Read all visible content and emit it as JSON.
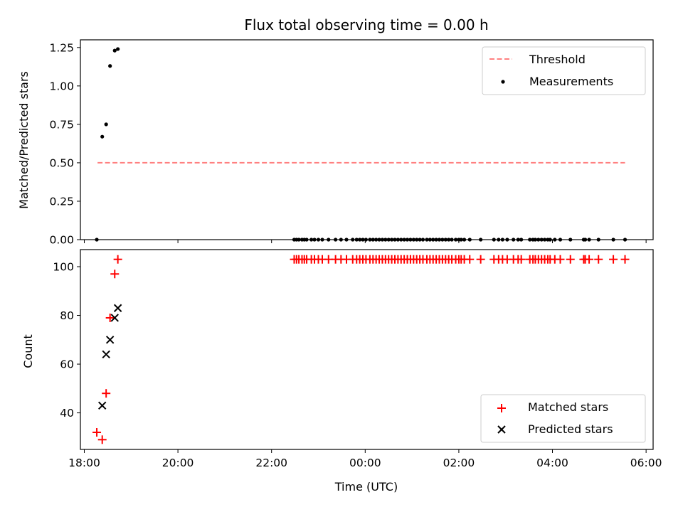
{
  "chart_data": [
    {
      "type": "scatter",
      "title": "Flux total observing time = 0.00 h",
      "xlabel": "",
      "ylabel": "Matched/Predicted stars",
      "ylim": [
        0,
        1.3
      ],
      "xlim": [
        "17:55",
        "06:09"
      ],
      "yticks": [
        "0.00",
        "0.25",
        "0.50",
        "0.75",
        "1.00",
        "1.25"
      ],
      "grid": false,
      "legend_position": "top-right",
      "threshold": {
        "name": "Threshold",
        "value": 0.5,
        "x_range": [
          "18:17",
          "05:33"
        ],
        "color": "#ff8080",
        "style": "dashed"
      },
      "series": [
        {
          "name": "Measurements",
          "color": "#000000",
          "x": [
            "18:16",
            "18:23",
            "18:28",
            "18:33",
            "18:39",
            "18:43"
          ],
          "y": [
            0.0,
            0.67,
            0.75,
            1.13,
            1.23,
            1.24
          ]
        },
        {
          "name": "Measurements",
          "color": "#000000",
          "times": [
            "22:29",
            "22:32",
            "22:35",
            "22:39",
            "22:42",
            "22:45",
            "22:51",
            "22:55",
            "23:00",
            "23:05",
            "23:13",
            "23:22",
            "23:29",
            "23:36",
            "23:44",
            "23:49",
            "23:53",
            "23:57",
            "00:01",
            "00:06",
            "00:10",
            "00:14",
            "00:18",
            "00:22",
            "00:26",
            "00:30",
            "00:34",
            "00:38",
            "00:42",
            "00:46",
            "00:50",
            "00:54",
            "00:58",
            "01:02",
            "01:06",
            "01:10",
            "01:14",
            "01:19",
            "01:23",
            "01:27",
            "01:31",
            "01:35",
            "01:39",
            "01:43",
            "01:47",
            "01:51",
            "01:56",
            "02:00",
            "02:03",
            "02:07",
            "02:14",
            "02:28",
            "02:45",
            "02:51",
            "02:56",
            "03:02",
            "03:10",
            "03:16",
            "03:20",
            "03:31",
            "03:35",
            "03:38",
            "03:42",
            "03:46",
            "03:50",
            "03:54",
            "03:57",
            "04:03",
            "04:10",
            "04:23",
            "04:40",
            "04:42",
            "04:47",
            "04:59",
            "05:18",
            "05:33"
          ],
          "value": 0.0
        }
      ]
    },
    {
      "type": "scatter",
      "title": "",
      "xlabel": "Time (UTC)",
      "ylabel": "Count",
      "ylim": [
        25,
        107
      ],
      "xlim": [
        "17:55",
        "06:09"
      ],
      "xticks": [
        "18:00",
        "20:00",
        "22:00",
        "00:00",
        "02:00",
        "04:00",
        "06:00"
      ],
      "yticks": [
        "40",
        "60",
        "80",
        "100"
      ],
      "grid": false,
      "legend_position": "bottom-right",
      "series": [
        {
          "name": "Matched stars",
          "color": "#ff0000",
          "marker": "+",
          "x": [
            "18:16",
            "18:23",
            "18:28",
            "18:33",
            "18:39",
            "18:43"
          ],
          "y": [
            32,
            29,
            48,
            79,
            97,
            103
          ]
        },
        {
          "name": "Matched stars",
          "color": "#ff0000",
          "marker": "+",
          "times": [
            "22:29",
            "22:32",
            "22:35",
            "22:39",
            "22:42",
            "22:45",
            "22:51",
            "22:55",
            "23:00",
            "23:05",
            "23:13",
            "23:22",
            "23:29",
            "23:36",
            "23:44",
            "23:49",
            "23:53",
            "23:57",
            "00:01",
            "00:06",
            "00:10",
            "00:14",
            "00:18",
            "00:22",
            "00:26",
            "00:30",
            "00:34",
            "00:38",
            "00:42",
            "00:46",
            "00:50",
            "00:54",
            "00:58",
            "01:02",
            "01:06",
            "01:10",
            "01:14",
            "01:19",
            "01:23",
            "01:27",
            "01:31",
            "01:35",
            "01:39",
            "01:43",
            "01:47",
            "01:51",
            "01:56",
            "02:00",
            "02:03",
            "02:07",
            "02:14",
            "02:28",
            "02:45",
            "02:51",
            "02:56",
            "03:02",
            "03:10",
            "03:16",
            "03:20",
            "03:31",
            "03:35",
            "03:38",
            "03:42",
            "03:46",
            "03:50",
            "03:54",
            "03:57",
            "04:03",
            "04:10",
            "04:23",
            "04:40",
            "04:42",
            "04:47",
            "04:59",
            "05:18",
            "05:33"
          ],
          "value": 103
        },
        {
          "name": "Predicted stars",
          "color": "#000000",
          "marker": "x",
          "x": [
            "18:23",
            "18:28",
            "18:33",
            "18:39",
            "18:43"
          ],
          "y": [
            43,
            64,
            70,
            79,
            83
          ]
        }
      ]
    }
  ]
}
